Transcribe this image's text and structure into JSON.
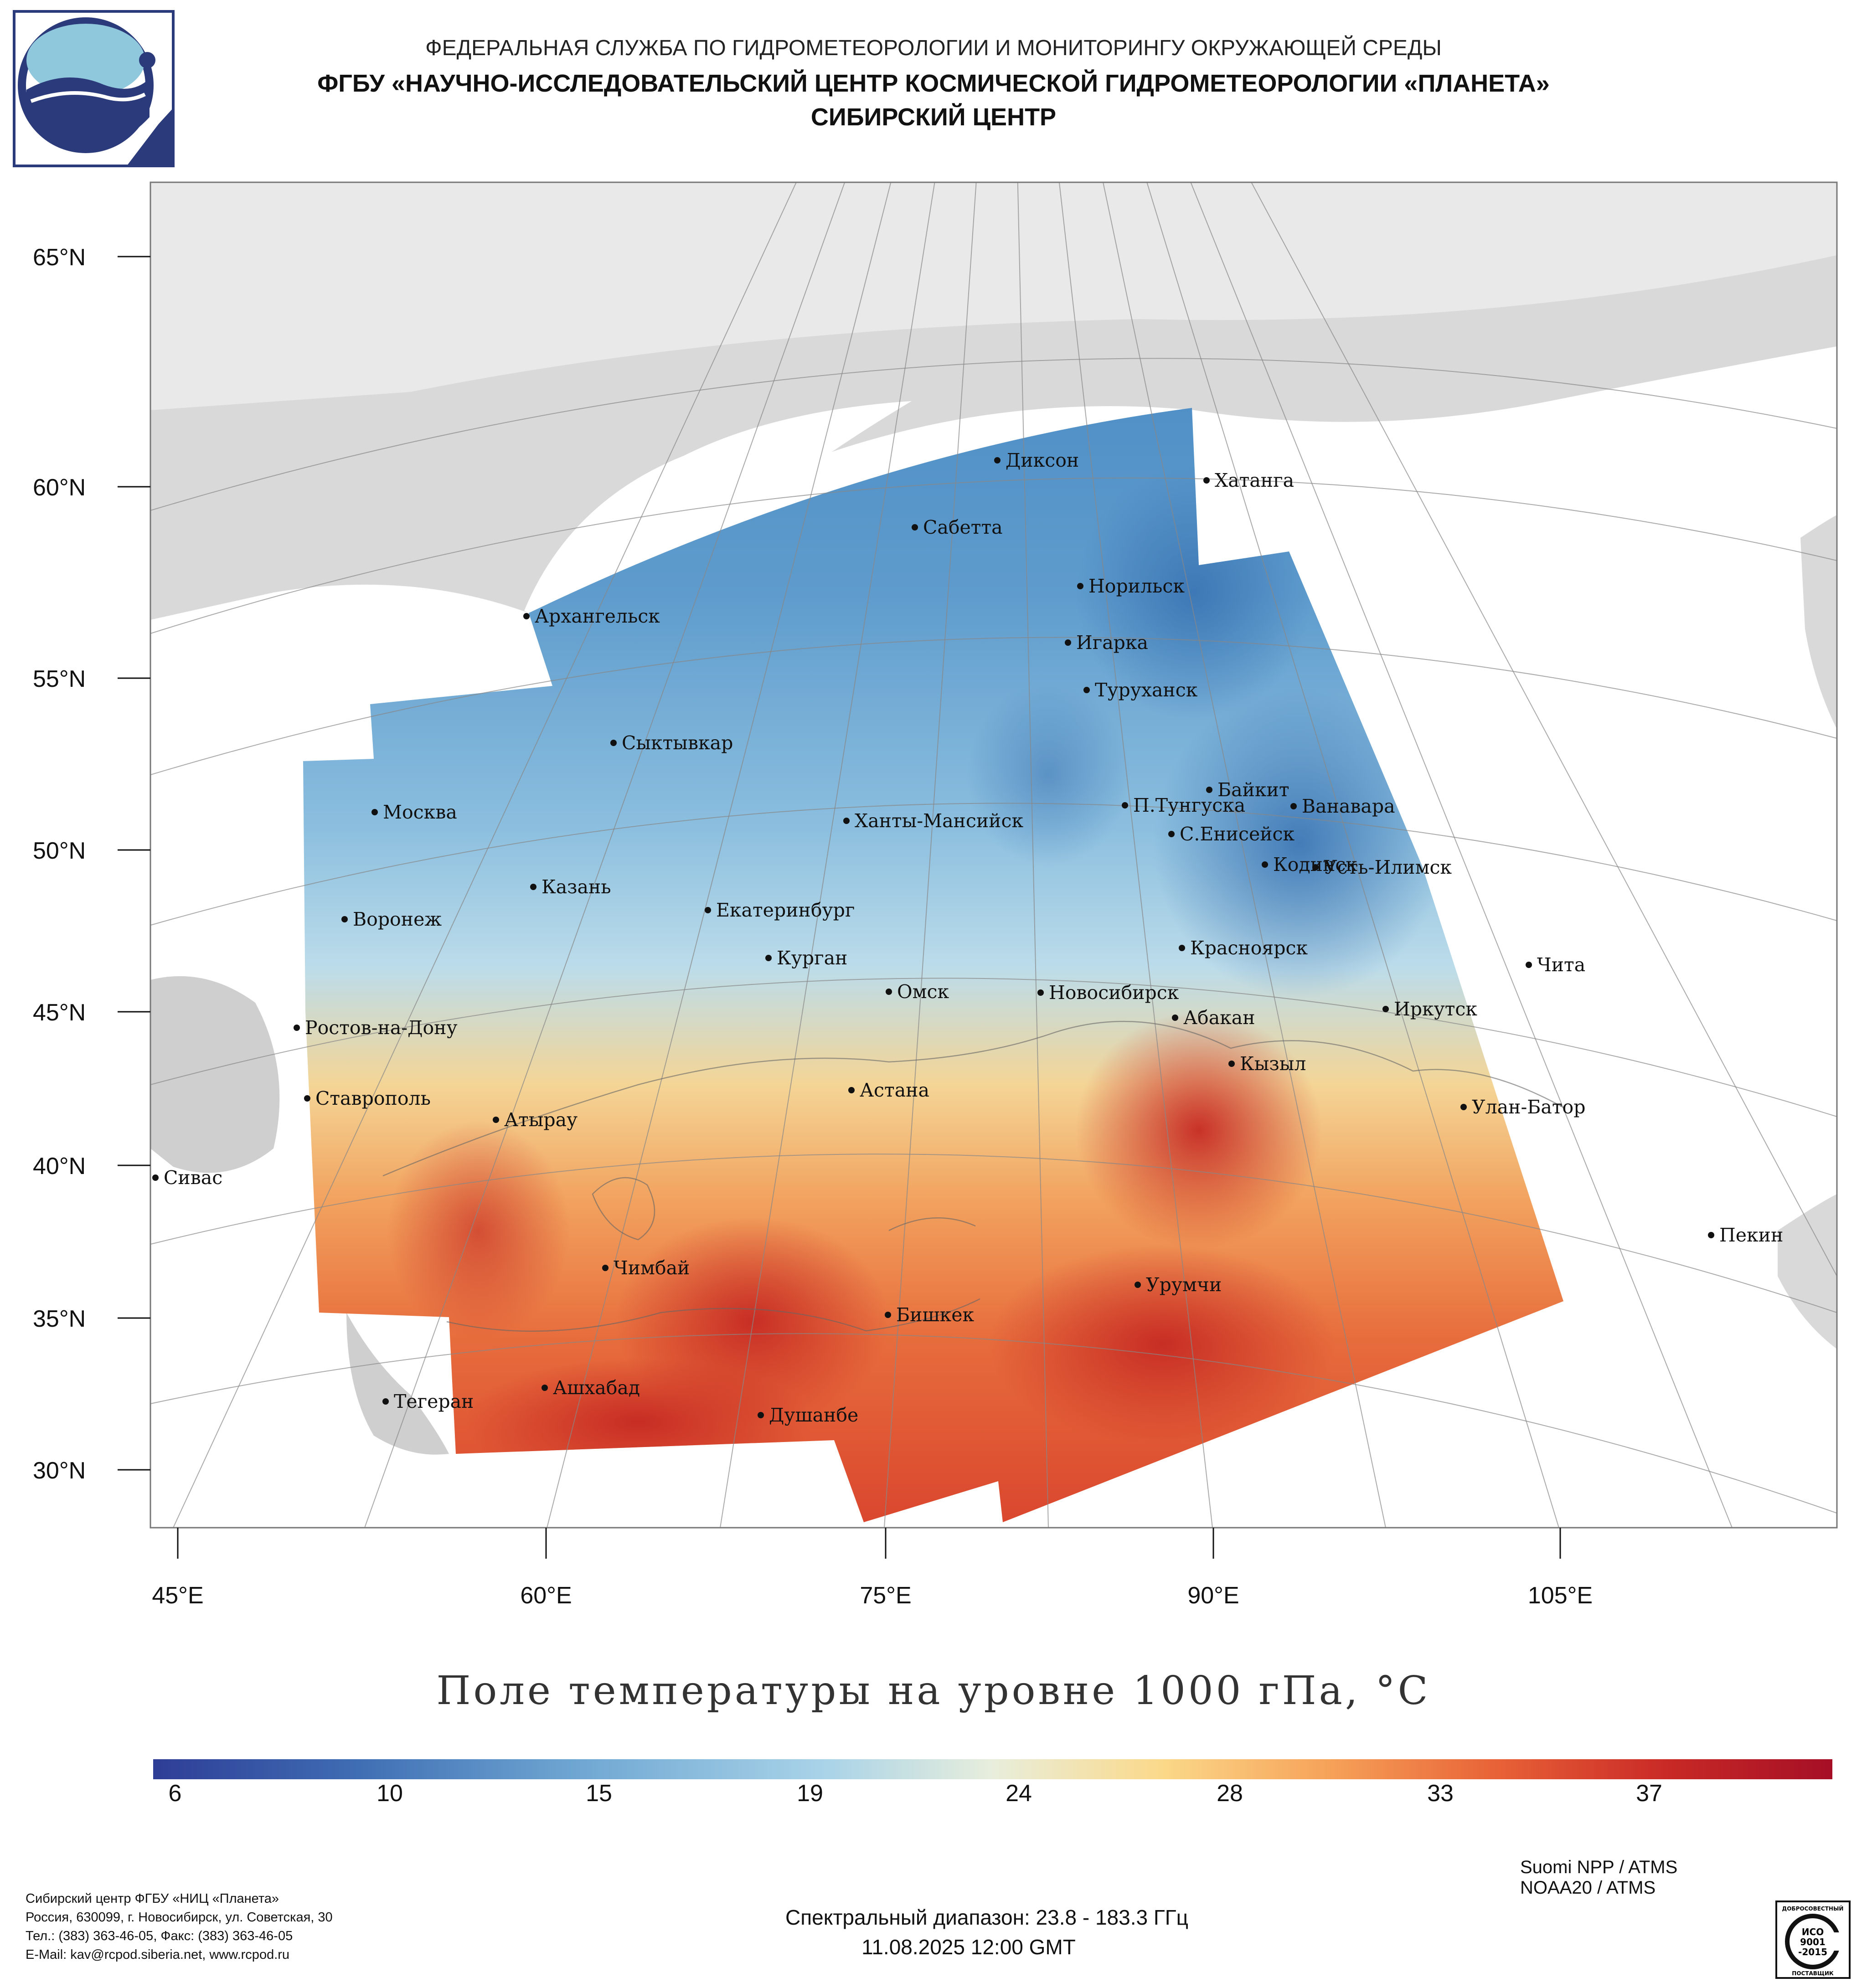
{
  "header": {
    "line1": "ФЕДЕРАЛЬНАЯ СЛУЖБА ПО ГИДРОМЕТЕОРОЛОГИИ И МОНИТОРИНГУ ОКРУЖАЮЩЕЙ СРЕДЫ",
    "line2": "ФГБУ «НАУЧНО-ИССЛЕДОВАТЕЛЬСКИЙ ЦЕНТР КОСМИЧЕСКОЙ ГИДРОМЕТЕОРОЛОГИИ «ПЛАНЕТА»",
    "line3": "СИБИРСКИЙ ЦЕНТР"
  },
  "map": {
    "latitude_labels": [
      "65°N",
      "60°N",
      "55°N",
      "50°N",
      "45°N",
      "40°N",
      "35°N",
      "30°N"
    ],
    "longitude_labels": [
      "45°E",
      "60°E",
      "75°E",
      "90°E",
      "105°E"
    ],
    "cities": [
      "Диксон",
      "Хатанга",
      "Сабетта",
      "Норильск",
      "Архангельск",
      "Игарка",
      "Туруханск",
      "Сыктывкар",
      "Байкит",
      "П.Тунгуска",
      "Ванавара",
      "Москва",
      "Ханты-Мансийск",
      "С.Енисейск",
      "Кодинск",
      "Усть-Илимск",
      "Казань",
      "Екатеринбург",
      "Воронеж",
      "Красноярск",
      "Курган",
      "Чита",
      "Омск",
      "Новосибирск",
      "Иркутск",
      "Абакан",
      "Ростов-на-Дону",
      "Кызыл",
      "Астана",
      "Ставрополь",
      "Улан-Батор",
      "Атырау",
      "Сивас",
      "Пекин",
      "Чимбай",
      "Урумчи",
      "Бишкек",
      "Тегеран",
      "Ашхабад",
      "Душанбе"
    ],
    "land_color": "#d9d9d9",
    "sea_color": "#ffffff"
  },
  "product": {
    "title": "Поле температуры на уровне 1000 гПа, °C"
  },
  "colorbar": {
    "ticks": [
      "6",
      "10",
      "15",
      "19",
      "24",
      "28",
      "33",
      "37"
    ],
    "colors": [
      "#2e3d96",
      "#3f6db3",
      "#6ea6d2",
      "#a9d3e8",
      "#e8eedc",
      "#fbd98a",
      "#f6a259",
      "#e86237",
      "#c92a26",
      "#a50f26"
    ]
  },
  "satellites": [
    "Suomi NPP / ATMS",
    "NOAA20 / ATMS"
  ],
  "spectral": "Спектральный диапазон: 23.8 - 183.3 ГГц",
  "datetime": "11.08.2025 12:00 GMT",
  "contacts": [
    "Сибирский центр ФГБУ «НИЦ «Планета»",
    "Россия, 630099, г. Новосибирск, ул. Советская, 30",
    "Тел.: (383) 363-46-05, Факс: (383) 363-46-05",
    "E-Mail: kav@rcpod.siberia.net, www.rcpod.ru"
  ],
  "iso_badge": {
    "top": "ДОБРОСОВЕСТНЫЙ",
    "line1": "ИСО",
    "line2": "9001",
    "line3": "-2015",
    "bottom": "ПОСТАВЩИК"
  }
}
